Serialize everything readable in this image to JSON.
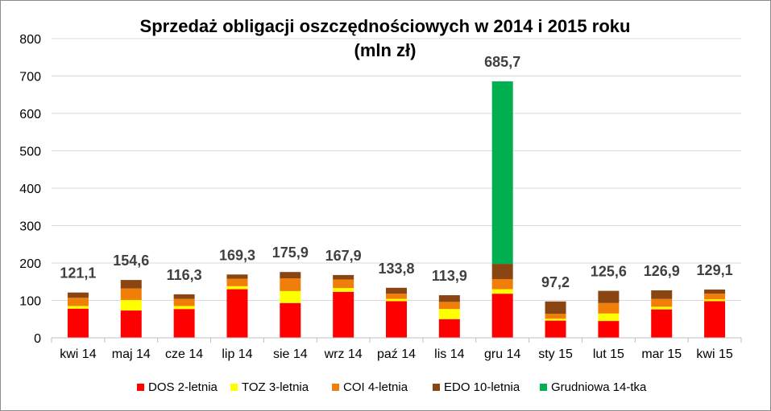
{
  "chart_data": {
    "type": "bar",
    "stacked": true,
    "title": "Sprzedaż obligacji oszczędnościowych w 2014 i 2015 roku",
    "subtitle": "(mln zł)",
    "xlabel": "",
    "ylabel": "",
    "ylim": [
      0,
      800
    ],
    "yticks": [
      0,
      100,
      200,
      300,
      400,
      500,
      600,
      700,
      800
    ],
    "yticks_labels": [
      "0",
      "100",
      "200",
      "300",
      "400",
      "500",
      "600",
      "700",
      "800"
    ],
    "grid": true,
    "legend_position": "bottom",
    "categories": [
      "kwi 14",
      "maj 14",
      "cze 14",
      "lip 14",
      "sie 14",
      "wrz 14",
      "paź 14",
      "lis 14",
      "gru 14",
      "sty 15",
      "lut 15",
      "mar 15",
      "kwi 15"
    ],
    "totals": [
      "121,1",
      "154,6",
      "116,3",
      "169,3",
      "175,9",
      "167,9",
      "133,8",
      "113,9",
      "685,7",
      "97,2",
      "125,6",
      "126,9",
      "129,1"
    ],
    "total_values": [
      121.1,
      154.6,
      116.3,
      169.3,
      175.9,
      167.9,
      133.8,
      113.9,
      685.7,
      97.2,
      125.6,
      126.9,
      129.1
    ],
    "series": [
      {
        "name": "DOS 2-letnia",
        "color": "#ff0000",
        "values": [
          78,
          73,
          77,
          130,
          93,
          123,
          98,
          50,
          118,
          46,
          45,
          76,
          98
        ]
      },
      {
        "name": "TOZ 3-letnia",
        "color": "#ffff00",
        "values": [
          7,
          28,
          8,
          8,
          32,
          10,
          6,
          27,
          12,
          5,
          20,
          7,
          5
        ]
      },
      {
        "name": "COI 4-letnia",
        "color": "#f07f09",
        "values": [
          22,
          31,
          19,
          20,
          34,
          23,
          14,
          19,
          27,
          13,
          28,
          21,
          15
        ]
      },
      {
        "name": "EDO 10-letnia",
        "color": "#8b4513",
        "values": [
          14.1,
          22.6,
          12.3,
          11.3,
          16.9,
          11.9,
          15.8,
          17.9,
          40.7,
          33.2,
          32.6,
          22.9,
          11.1
        ]
      },
      {
        "name": "Grudniowa 14-tka",
        "color": "#00b050",
        "values": [
          0,
          0,
          0,
          0,
          0,
          0,
          0,
          0,
          488,
          0,
          0,
          0,
          0
        ]
      }
    ]
  }
}
